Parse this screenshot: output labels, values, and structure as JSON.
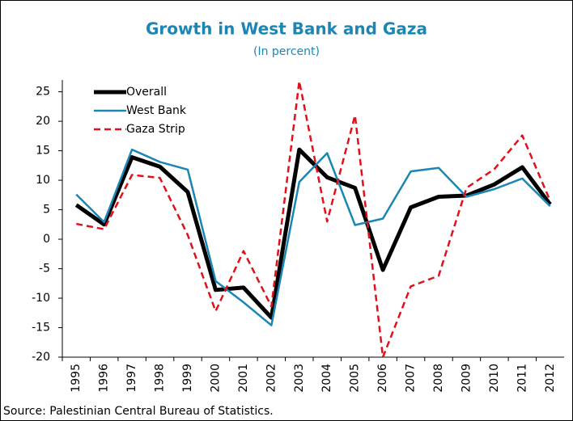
{
  "chart_data": {
    "type": "line",
    "title": "Growth in West Bank and Gaza",
    "subtitle": "(In percent)",
    "categories": [
      "1995",
      "1996",
      "1997",
      "1998",
      "1999",
      "2000",
      "2001",
      "2002",
      "2003",
      "2004",
      "2005",
      "2006",
      "2007",
      "2008",
      "2009",
      "2010",
      "2011",
      "2012"
    ],
    "series": [
      {
        "name": "Overall",
        "color": "#000000",
        "values": [
          5.8,
          2.5,
          13.9,
          12.3,
          8.0,
          -8.6,
          -8.2,
          -13.3,
          15.2,
          10.5,
          8.7,
          -5.2,
          5.4,
          7.2,
          7.4,
          9.3,
          12.2,
          5.9
        ]
      },
      {
        "name": "West Bank",
        "color": "#1b86b4",
        "values": [
          7.6,
          2.9,
          15.2,
          13.1,
          11.8,
          -7.1,
          -10.7,
          -14.6,
          9.7,
          14.6,
          2.4,
          3.5,
          11.5,
          12.1,
          7.2,
          8.5,
          10.3,
          5.6
        ]
      },
      {
        "name": "Gaza Strip",
        "color": "#e0111b",
        "values": [
          2.6,
          1.7,
          10.9,
          10.4,
          0.7,
          -12.2,
          -2.0,
          -11.4,
          26.8,
          3.0,
          21.0,
          -20.0,
          -8.0,
          -6.2,
          8.7,
          11.9,
          17.6,
          6.5
        ]
      }
    ],
    "ylim": [
      -20,
      27
    ],
    "yticks": [
      -20,
      -15,
      -10,
      -5,
      0,
      5,
      10,
      15,
      20,
      25
    ],
    "legend": "upper-left",
    "source": "Source: Palestinian Central Bureau of Statistics."
  }
}
